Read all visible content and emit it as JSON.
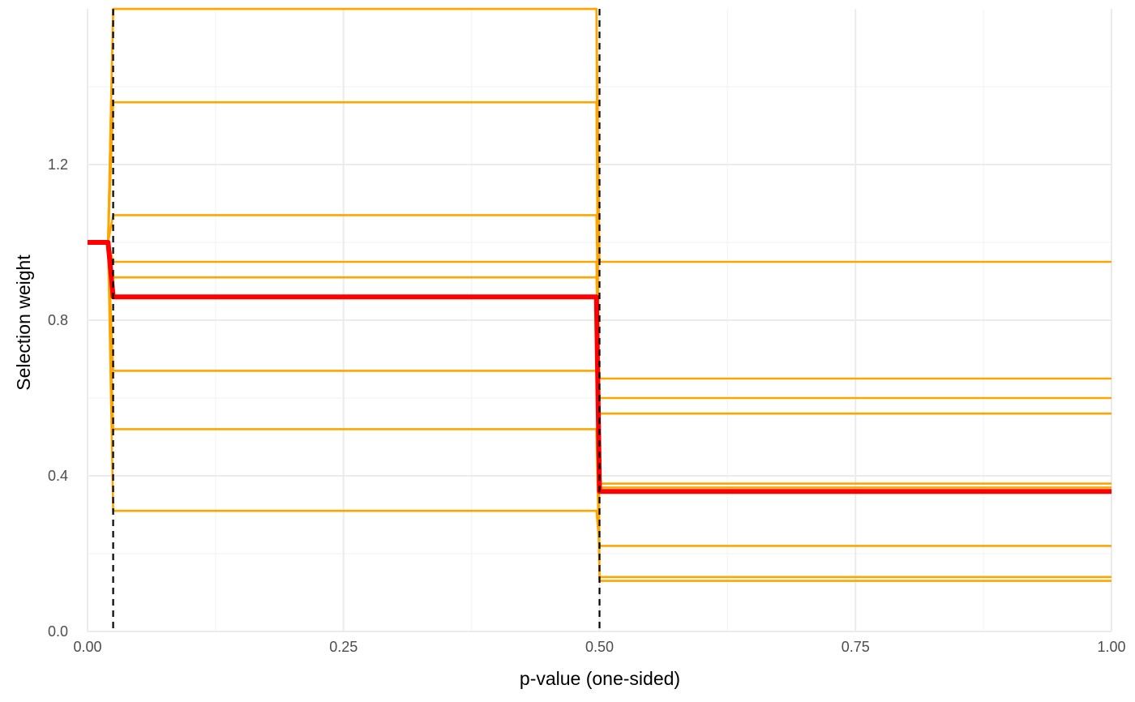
{
  "chart_data": {
    "type": "line",
    "title": "",
    "xlabel": "p-value (one-sided)",
    "ylabel": "Selection weight",
    "xlim": [
      0,
      1
    ],
    "ylim": [
      0,
      1.6
    ],
    "x_ticks": [
      {
        "value": 0,
        "label": "0.00"
      },
      {
        "value": 0.25,
        "label": "0.25"
      },
      {
        "value": 0.5,
        "label": "0.50"
      },
      {
        "value": 0.75,
        "label": "0.75"
      },
      {
        "value": 1,
        "label": "1.00"
      }
    ],
    "y_ticks": [
      {
        "value": 0,
        "label": "0.0"
      },
      {
        "value": 0.4,
        "label": "0.4"
      },
      {
        "value": 0.8,
        "label": "0.8"
      },
      {
        "value": 1.2,
        "label": "1.2"
      }
    ],
    "minor_x_gridlines": [
      0.125,
      0.375,
      0.625,
      0.875
    ],
    "minor_y_gridlines": [
      0.2,
      0.6,
      1.0,
      1.4
    ],
    "grid": true,
    "cutpoints": [
      0.025,
      0.5
    ],
    "colors": {
      "samples": "#ffa500",
      "estimate": "#ff0000",
      "cutpoint": "#000000",
      "grid_major": "#ebebeb",
      "grid_minor": "#f4f4f4"
    },
    "x": [
      0,
      0.025,
      0.5,
      1
    ],
    "sample_series": [
      {
        "values": [
          1,
          1.6,
          0.95,
          0.95
        ]
      },
      {
        "values": [
          1,
          1.36,
          0.37,
          0.37
        ]
      },
      {
        "values": [
          1,
          1.07,
          0.6,
          0.6
        ]
      },
      {
        "values": [
          1,
          0.95,
          0.56,
          0.56
        ]
      },
      {
        "values": [
          1,
          0.91,
          0.65,
          0.65
        ]
      },
      {
        "values": [
          1,
          0.67,
          0.38,
          0.38
        ]
      },
      {
        "values": [
          1,
          0.52,
          0.14,
          0.14
        ]
      },
      {
        "values": [
          1,
          0.31,
          0.22,
          0.22
        ]
      },
      {
        "values": [
          1,
          1.6,
          0.13,
          0.13
        ]
      }
    ],
    "estimate_series": {
      "values": [
        1,
        0.86,
        0.36,
        0.36
      ]
    }
  }
}
